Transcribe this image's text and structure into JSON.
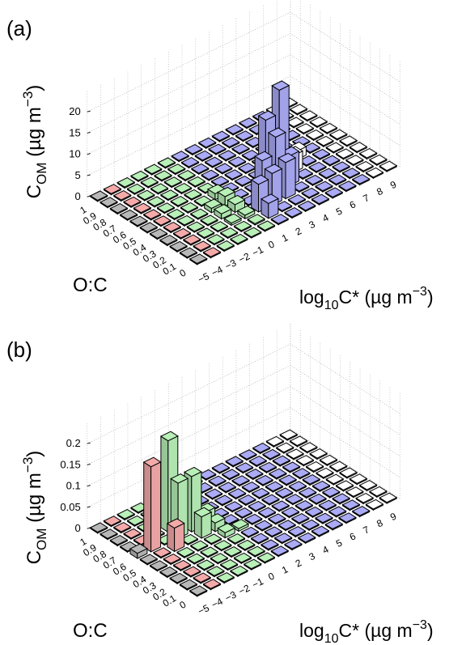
{
  "chart_data": [
    {
      "type": "bar3d",
      "panel_label": "(a)",
      "zlabel": "C_OM (µg m⁻³)",
      "zlabel_main": "C",
      "zlabel_sub": "OM",
      "zlabel_rest": " (µg m",
      "zlabel_exp": "−3",
      "zlabel_close": ")",
      "ylabel": "O:C",
      "xlabel": "log10C* (µg m⁻³)",
      "xlabel_main": "log",
      "xlabel_sub": "10",
      "xlabel_rest": "C* (µg m",
      "xlabel_exp": "−3",
      "xlabel_close": ")",
      "zlim": [
        0,
        20
      ],
      "z_ticks": [
        "0",
        "5",
        "10",
        "15",
        "20"
      ],
      "x_ticks": [
        "−5",
        "−4",
        "−3",
        "−2",
        "−1",
        "0",
        "1",
        "2",
        "3",
        "4",
        "5",
        "6",
        "7",
        "8",
        "9"
      ],
      "y_ticks": [
        "0",
        "0.1",
        "0.2",
        "0.3",
        "0.4",
        "0.5",
        "0.6",
        "0.7",
        "0.8",
        "0.9",
        "1"
      ],
      "grid": true,
      "bars": [
        {
          "x": 0,
          "y": 0.1,
          "z": 0.3,
          "group": "green"
        },
        {
          "x": 0,
          "y": 0.2,
          "z": 0.8,
          "group": "green"
        },
        {
          "x": -1,
          "y": 0.2,
          "z": 0.5,
          "group": "green"
        },
        {
          "x": 0,
          "y": 0.3,
          "z": 1.8,
          "group": "green"
        },
        {
          "x": -1,
          "y": 0.3,
          "z": 1.2,
          "group": "green"
        },
        {
          "x": 0,
          "y": 0.4,
          "z": 2.2,
          "group": "green"
        },
        {
          "x": -1,
          "y": 0.4,
          "z": 1.0,
          "group": "green"
        },
        {
          "x": 0,
          "y": 0.5,
          "z": 1.4,
          "group": "green"
        },
        {
          "x": 1,
          "y": 0.1,
          "z": 3.5,
          "group": "blue"
        },
        {
          "x": 1,
          "y": 0.2,
          "z": 6.5,
          "group": "blue"
        },
        {
          "x": 2,
          "y": 0.2,
          "z": 7.5,
          "group": "blue"
        },
        {
          "x": 2,
          "y": 0.3,
          "z": 9.0,
          "group": "blue"
        },
        {
          "x": 3,
          "y": 0.2,
          "z": 8.5,
          "group": "blue"
        },
        {
          "x": 3,
          "y": 0.3,
          "z": 13.0,
          "group": "blue"
        },
        {
          "x": 3,
          "y": 0.4,
          "z": 15.5,
          "group": "blue"
        },
        {
          "x": 4,
          "y": 0.3,
          "z": 7.0,
          "group": "blue"
        },
        {
          "x": 4,
          "y": 0.4,
          "z": 21.0,
          "group": "blue"
        },
        {
          "x": 5,
          "y": 0.4,
          "z": 4.0,
          "group": "white"
        },
        {
          "x": 6,
          "y": 0.5,
          "z": 2.0,
          "group": "white"
        }
      ]
    },
    {
      "type": "bar3d",
      "panel_label": "(b)",
      "zlabel": "C_OM (µg m⁻³)",
      "zlabel_main": "C",
      "zlabel_sub": "OM",
      "zlabel_rest": " (µg m",
      "zlabel_exp": "−3",
      "zlabel_close": ")",
      "ylabel": "O:C",
      "xlabel": "log10C* (µg m⁻³)",
      "xlabel_main": "log",
      "xlabel_sub": "10",
      "xlabel_rest": "C* (µg m",
      "xlabel_exp": "−3",
      "xlabel_close": ")",
      "zlim": [
        0,
        0.2
      ],
      "z_ticks": [
        "0",
        "0.05",
        "0.1",
        "0.15",
        "0.2"
      ],
      "x_ticks": [
        "−5",
        "−4",
        "−3",
        "−2",
        "−1",
        "0",
        "1",
        "2",
        "3",
        "4",
        "5",
        "6",
        "7",
        "8",
        "9"
      ],
      "y_ticks": [
        "0",
        "0.1",
        "0.2",
        "0.3",
        "0.4",
        "0.5",
        "0.6",
        "0.7",
        "0.8",
        "0.9",
        "1"
      ],
      "grid": true,
      "bars": [
        {
          "x": -5,
          "y": 0.6,
          "z": 0.012,
          "group": "gray"
        },
        {
          "x": -4,
          "y": 0.6,
          "z": 0.2,
          "group": "red"
        },
        {
          "x": -3,
          "y": 0.5,
          "z": 0.055,
          "group": "red"
        },
        {
          "x": -2,
          "y": 0.6,
          "z": 0.13,
          "group": "green"
        },
        {
          "x": -2,
          "y": 0.7,
          "z": 0.215,
          "group": "green"
        },
        {
          "x": -1,
          "y": 0.5,
          "z": 0.05,
          "group": "green"
        },
        {
          "x": -1,
          "y": 0.6,
          "z": 0.13,
          "group": "green"
        },
        {
          "x": -1,
          "y": 0.7,
          "z": 0.09,
          "group": "green"
        },
        {
          "x": 0,
          "y": 0.5,
          "z": 0.02,
          "group": "green"
        },
        {
          "x": 0,
          "y": 0.6,
          "z": 0.03,
          "group": "green"
        },
        {
          "x": 0,
          "y": 0.4,
          "z": 0.012,
          "group": "green"
        },
        {
          "x": 1,
          "y": 0.4,
          "z": 0.006,
          "group": "green"
        }
      ]
    }
  ],
  "style": {
    "colors": {
      "gray": "#b8b8b8",
      "red": "#f5aaaa",
      "green": "#b8f0b8",
      "blue": "#aaaaf5",
      "white": "#ffffff"
    }
  }
}
